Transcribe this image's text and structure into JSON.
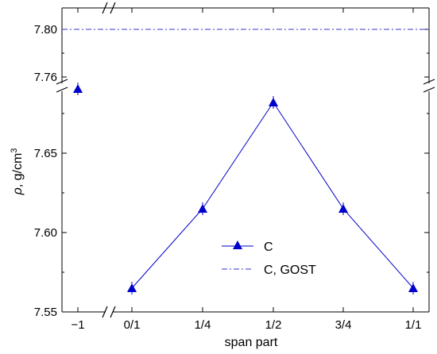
{
  "chart_data": {
    "type": "line",
    "xlabel": "span part",
    "ylabel_prefix": "ρ",
    "ylabel_units": ", g/cm",
    "ylabel_sup": "3",
    "categories": [
      "−1",
      "0/1",
      "1/4",
      "1/2",
      "3/4",
      "1/1"
    ],
    "y_ticks": [
      "7.55",
      "7.60",
      "7.65",
      "7.76",
      "7.80"
    ],
    "y_break": "between 7.69 and 7.75",
    "x_break": "between −1 and 0/1",
    "series": [
      {
        "name": "C",
        "marker": "filled-triangle",
        "color": "#0000cc",
        "points": [
          {
            "x": "−1",
            "y": 7.75
          },
          {
            "x": "0/1",
            "y": 7.565
          },
          {
            "x": "1/4",
            "y": 7.615
          },
          {
            "x": "1/2",
            "y": 7.682
          },
          {
            "x": "3/4",
            "y": 7.615
          },
          {
            "x": "1/1",
            "y": 7.565
          }
        ],
        "connected_from": "0/1"
      },
      {
        "name": "C, GOST",
        "style": "dash-dot",
        "color": "#3333cc",
        "y": 7.8
      }
    ],
    "legend_position": "lower-center",
    "grid": false
  }
}
